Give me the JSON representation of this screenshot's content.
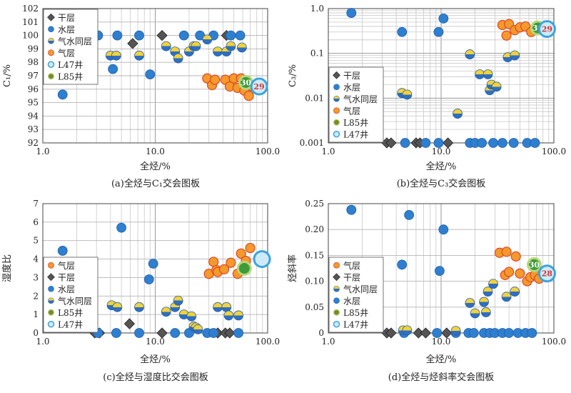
{
  "chart_data": [
    {
      "panel": "a",
      "type": "scatter",
      "caption": "(a)全烃与C₁交会图板",
      "xlabel": "全烃/%",
      "ylabel": "C₁/%",
      "xscale": "log",
      "xlim": [
        1,
        100
      ],
      "ylim": [
        92,
        102
      ],
      "xticks": [
        1,
        10,
        100
      ],
      "xtick_labels": [
        "1.0",
        "10.0",
        "100.0"
      ],
      "yticks": [
        92,
        93,
        94,
        95,
        96,
        97,
        98,
        99,
        100,
        101,
        102
      ],
      "ytick_labels": [
        "92",
        "93",
        "94",
        "95",
        "96",
        "97",
        "98",
        "99",
        "100",
        "101",
        "102"
      ],
      "legend": {
        "position": "top-left",
        "entries": [
          {
            "label": "干层",
            "kind": "dry"
          },
          {
            "label": "水层",
            "kind": "water"
          },
          {
            "label": "气水同层",
            "kind": "gw"
          },
          {
            "label": "气层",
            "kind": "gas"
          },
          {
            "label": "L47井",
            "kind": "l47"
          },
          {
            "label": "L85井",
            "kind": "l85"
          }
        ]
      },
      "series": [
        {
          "kind": "dry",
          "points": [
            [
              3.0,
              100
            ],
            [
              6.3,
              99.4
            ],
            [
              11.5,
              100
            ],
            [
              43,
              100
            ]
          ]
        },
        {
          "kind": "water",
          "points": [
            [
              1.5,
              95.6
            ],
            [
              3.1,
              100
            ],
            [
              4.2,
              97.5
            ],
            [
              4.6,
              100
            ],
            [
              7.2,
              100
            ],
            [
              9,
              97.1
            ],
            [
              18,
              100
            ],
            [
              25,
              100
            ],
            [
              33,
              100
            ],
            [
              47,
              100
            ],
            [
              57,
              100
            ]
          ]
        },
        {
          "kind": "gw",
          "points": [
            [
              4,
              98.5
            ],
            [
              4.5,
              98.5
            ],
            [
              7.2,
              98.5
            ],
            [
              12.5,
              99.2
            ],
            [
              15,
              98.8
            ],
            [
              16,
              98.3
            ],
            [
              20,
              98.8
            ],
            [
              22,
              99.2
            ],
            [
              23,
              99.2
            ],
            [
              29,
              99.7
            ],
            [
              36,
              98.8
            ],
            [
              43,
              98.8
            ],
            [
              47,
              99.2
            ],
            [
              59,
              99.1
            ]
          ]
        },
        {
          "kind": "gas",
          "points": [
            [
              29,
              96.8
            ],
            [
              32,
              96.3
            ],
            [
              34,
              96.7
            ],
            [
              42,
              96.7
            ],
            [
              46,
              96.2
            ],
            [
              50,
              96.8
            ],
            [
              54,
              96.1
            ],
            [
              58,
              96.8
            ],
            [
              62,
              95.9
            ],
            [
              68,
              95.5
            ],
            [
              73,
              96.2
            ]
          ]
        },
        {
          "kind": "l85",
          "points": [
            [
              64,
              96.5
            ]
          ],
          "label": "30"
        },
        {
          "kind": "l47",
          "points": [
            [
              84,
              96.2
            ]
          ],
          "label": "29"
        }
      ]
    },
    {
      "panel": "b",
      "type": "scatter",
      "caption": "(b)全烃与C₃交会图板",
      "xlabel": "全烃/%",
      "ylabel": "C₃/%",
      "xscale": "log",
      "yscale": "log",
      "xlim": [
        1,
        100
      ],
      "ylim": [
        0.001,
        1
      ],
      "xticks": [
        1,
        10,
        100
      ],
      "xtick_labels": [
        "1.0",
        "10.0",
        "100.0"
      ],
      "yticks": [
        0.001,
        0.01,
        0.1,
        1
      ],
      "ytick_labels": [
        "0.001",
        "0.01",
        "0.1",
        "1.0"
      ],
      "legend": {
        "position": "bottom-left",
        "entries": [
          {
            "label": "干层",
            "kind": "dry"
          },
          {
            "label": "水层",
            "kind": "water"
          },
          {
            "label": "气水同层",
            "kind": "gw"
          },
          {
            "label": "气层",
            "kind": "gas"
          },
          {
            "label": "L85井",
            "kind": "l85"
          },
          {
            "label": "L47井",
            "kind": "l47"
          }
        ]
      },
      "series": [
        {
          "kind": "dry",
          "points": [
            [
              3.3,
              0.001
            ],
            [
              3.6,
              0.001
            ],
            [
              6,
              0.001
            ],
            [
              6.5,
              0.001
            ],
            [
              11.5,
              0.001
            ]
          ]
        },
        {
          "kind": "water",
          "points": [
            [
              1.6,
              0.8
            ],
            [
              4.5,
              0.3
            ],
            [
              9.5,
              0.3
            ],
            [
              10.5,
              0.6
            ],
            [
              4.8,
              0.001
            ],
            [
              7.3,
              0.001
            ],
            [
              9.5,
              0.001
            ],
            [
              18,
              0.001
            ],
            [
              20,
              0.001
            ],
            [
              23,
              0.001
            ],
            [
              29,
              0.001
            ],
            [
              35,
              0.001
            ],
            [
              44,
              0.001
            ],
            [
              58,
              0.001
            ],
            [
              68,
              0.001
            ]
          ]
        },
        {
          "kind": "gw",
          "points": [
            [
              4.5,
              0.013
            ],
            [
              5,
              0.012
            ],
            [
              14,
              0.0045
            ],
            [
              18,
              0.095
            ],
            [
              22,
              0.034
            ],
            [
              26,
              0.034
            ],
            [
              27,
              0.015
            ],
            [
              28,
              0.02
            ],
            [
              31,
              0.018
            ],
            [
              39,
              0.082
            ],
            [
              45,
              0.09
            ]
          ]
        },
        {
          "kind": "gas",
          "points": [
            [
              35,
              0.43
            ],
            [
              38,
              0.25
            ],
            [
              40,
              0.45
            ],
            [
              45,
              0.33
            ],
            [
              50,
              0.38
            ],
            [
              56,
              0.4
            ],
            [
              63,
              0.3
            ],
            [
              71,
              0.38
            ]
          ]
        },
        {
          "kind": "l85",
          "points": [
            [
              72,
              0.37
            ]
          ],
          "label": "30"
        },
        {
          "kind": "l47",
          "points": [
            [
              87,
              0.35
            ]
          ],
          "label": "29"
        }
      ]
    },
    {
      "panel": "c",
      "type": "scatter",
      "caption": "(c)全烃与湿度比交会图板",
      "xlabel": "全烃/%",
      "ylabel": "湿度比",
      "xscale": "log",
      "xlim": [
        1,
        100
      ],
      "ylim": [
        0,
        7
      ],
      "xticks": [
        1,
        10,
        100
      ],
      "xtick_labels": [
        "1.0",
        "10.0",
        "100.0"
      ],
      "yticks": [
        0,
        1,
        2,
        3,
        4,
        5,
        6,
        7
      ],
      "ytick_labels": [
        "0",
        "1",
        "2",
        "3",
        "4",
        "5",
        "6",
        "7"
      ],
      "legend": {
        "position": "bottom-left",
        "entries": [
          {
            "label": "气层",
            "kind": "gas"
          },
          {
            "label": "干层",
            "kind": "dry"
          },
          {
            "label": "水层",
            "kind": "water"
          },
          {
            "label": "气水同层",
            "kind": "gw"
          },
          {
            "label": "L85井",
            "kind": "l85"
          },
          {
            "label": "L47井",
            "kind": "l47"
          }
        ]
      },
      "series": [
        {
          "kind": "dry",
          "points": [
            [
              2.9,
              0
            ],
            [
              3.2,
              0
            ],
            [
              5.9,
              0.5
            ],
            [
              11.5,
              0
            ],
            [
              36,
              0
            ],
            [
              42,
              0
            ],
            [
              46,
              0
            ]
          ]
        },
        {
          "kind": "water",
          "points": [
            [
              1.5,
              4.45
            ],
            [
              3.1,
              0
            ],
            [
              4.5,
              0
            ],
            [
              5,
              5.7
            ],
            [
              7.2,
              0
            ],
            [
              8.8,
              2.9
            ],
            [
              9.6,
              3.75
            ],
            [
              15,
              0
            ],
            [
              20,
              0
            ],
            [
              29,
              0
            ],
            [
              33,
              0
            ],
            [
              55,
              0
            ]
          ]
        },
        {
          "kind": "gw",
          "points": [
            [
              4.1,
              1.5
            ],
            [
              4.6,
              1.4
            ],
            [
              7.2,
              1.4
            ],
            [
              12.5,
              1.15
            ],
            [
              15,
              1.4
            ],
            [
              16,
              1.75
            ],
            [
              18,
              1
            ],
            [
              21,
              0.9
            ],
            [
              22,
              0.35
            ],
            [
              23,
              0.3
            ],
            [
              24,
              0.2
            ],
            [
              36,
              1.4
            ],
            [
              43,
              1.4
            ],
            [
              45,
              0.95
            ],
            [
              55,
              0.95
            ]
          ]
        },
        {
          "kind": "gas",
          "points": [
            [
              30,
              3.2
            ],
            [
              33,
              3.85
            ],
            [
              35,
              3.4
            ],
            [
              36,
              3.3
            ],
            [
              41,
              3.45
            ],
            [
              47,
              3.8
            ],
            [
              54,
              3.2
            ],
            [
              58,
              4.3
            ],
            [
              64,
              3.9
            ],
            [
              70,
              4.6
            ]
          ]
        },
        {
          "kind": "l85",
          "points": [
            [
              62,
              3.5
            ]
          ],
          "label": ""
        },
        {
          "kind": "l47",
          "points": [
            [
              89,
              4
            ]
          ],
          "label": ""
        }
      ]
    },
    {
      "panel": "d",
      "type": "scatter",
      "caption": "(d)全烃与烃斜率交会图板",
      "xlabel": "全烃/%",
      "ylabel": "烃斜率",
      "xscale": "log",
      "xlim": [
        1,
        100
      ],
      "ylim": [
        0,
        0.25
      ],
      "xticks": [
        1,
        10,
        100
      ],
      "xtick_labels": [
        "1.0",
        "10.0",
        "100.0"
      ],
      "yticks": [
        0,
        0.05,
        0.1,
        0.15,
        0.2,
        0.25
      ],
      "ytick_labels": [
        "0",
        "0.05",
        "0.10",
        "0.15",
        "0.20",
        "0.25"
      ],
      "legend": {
        "position": "bottom-left",
        "entries": [
          {
            "label": "气层",
            "kind": "gas"
          },
          {
            "label": "干层",
            "kind": "dry"
          },
          {
            "label": "气水同层",
            "kind": "gw"
          },
          {
            "label": "水层",
            "kind": "water"
          },
          {
            "label": "L85井",
            "kind": "l85"
          },
          {
            "label": "L47井",
            "kind": "l47"
          }
        ]
      },
      "series": [
        {
          "kind": "dry",
          "points": [
            [
              3.3,
              0
            ],
            [
              3.6,
              0
            ],
            [
              6.3,
              0
            ],
            [
              7.3,
              0
            ],
            [
              11.2,
              0
            ]
          ]
        },
        {
          "kind": "water",
          "points": [
            [
              1.6,
              0.238
            ],
            [
              4.5,
              0.132
            ],
            [
              5.2,
              0.228
            ],
            [
              9.7,
              0.12
            ],
            [
              10.5,
              0.2
            ],
            [
              4.7,
              0
            ],
            [
              9.2,
              0
            ],
            [
              13.5,
              0
            ],
            [
              17.5,
              0
            ],
            [
              19.5,
              0
            ],
            [
              24,
              0
            ],
            [
              27,
              0
            ],
            [
              30,
              0
            ],
            [
              35,
              0
            ],
            [
              40,
              0
            ],
            [
              48,
              0
            ],
            [
              56,
              0
            ],
            [
              64,
              0
            ]
          ]
        },
        {
          "kind": "gw",
          "points": [
            [
              4.6,
              0.005
            ],
            [
              5,
              0.005
            ],
            [
              13.5,
              0.004
            ],
            [
              18,
              0.058
            ],
            [
              20,
              0.038
            ],
            [
              24,
              0.06
            ],
            [
              25,
              0.04
            ],
            [
              26,
              0.08
            ],
            [
              29,
              0.095
            ],
            [
              38,
              0.07
            ],
            [
              45,
              0.08
            ]
          ]
        },
        {
          "kind": "gas",
          "points": [
            [
              33,
              0.155
            ],
            [
              37,
              0.112
            ],
            [
              38,
              0.157
            ],
            [
              40,
              0.118
            ],
            [
              46,
              0.148
            ],
            [
              50,
              0.115
            ],
            [
              58,
              0.1
            ],
            [
              62,
              0.108
            ],
            [
              68,
              0.112
            ],
            [
              74,
              0.105
            ]
          ]
        },
        {
          "kind": "l85",
          "points": [
            [
              67,
              0.132
            ]
          ],
          "label": "30"
        },
        {
          "kind": "l47",
          "points": [
            [
              87,
              0.115
            ]
          ],
          "label": "28"
        }
      ]
    }
  ]
}
